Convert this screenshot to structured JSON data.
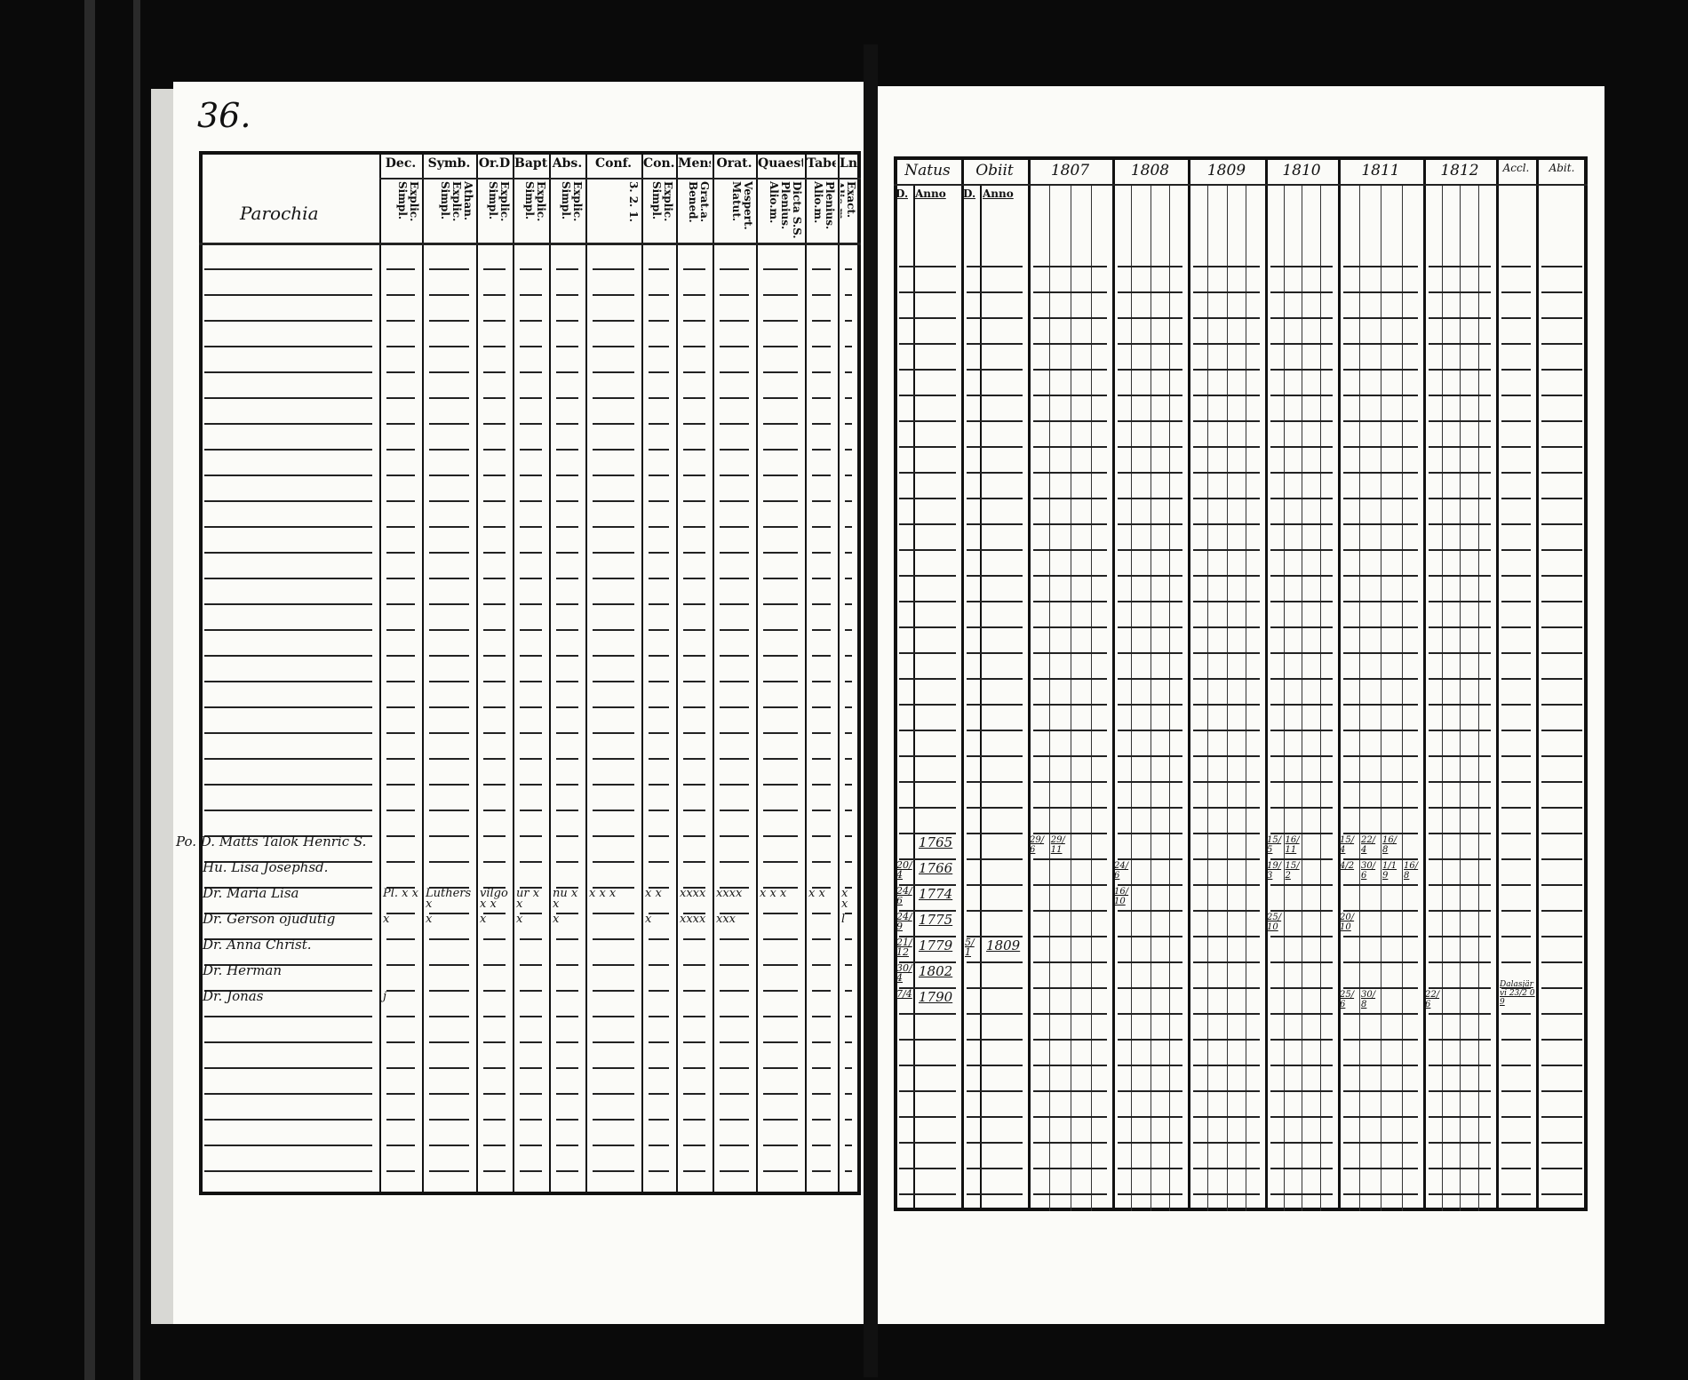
{
  "left_page": {
    "page_number": "36.",
    "name_column_header": "Parochia",
    "columns": [
      {
        "header": "Dec.",
        "sub": "Explic. Simpl."
      },
      {
        "header": "Symb.",
        "sub": "Athan. Explic. Simpl."
      },
      {
        "header": "Or.D",
        "sub": "Explic. Simpl."
      },
      {
        "header": "Bapt.",
        "sub": "Explic. Simpl."
      },
      {
        "header": "Abs.",
        "sub": "Explic. Simpl."
      },
      {
        "header": "Conf.",
        "sub": "3. 2. 1."
      },
      {
        "header": "Con.D",
        "sub": "Explic. Simpl."
      },
      {
        "header": "Mens.",
        "sub": "Grat.a. Bened."
      },
      {
        "header": "Orat.",
        "sub": "Vespert. Matut."
      },
      {
        "header": "Quaest.",
        "sub": "Dicta S.S. Plenius. Alio.m."
      },
      {
        "header": "Tabe.",
        "sub": "Plenius. Alio.m."
      },
      {
        "header": "Ln.",
        "sub": "Exact. Alio.m."
      }
    ],
    "entries": [
      {
        "name": "Po. D. Matts Talok Henric S.",
        "marks": []
      },
      {
        "name": "Hu. Lisa Josephsd.",
        "marks": []
      },
      {
        "name": "Dr. Maria Lisa",
        "marks": [
          "Pl. x x",
          "Luthers x",
          "vilgo x x",
          "ur x x",
          "nu x x",
          "x x x",
          "x x",
          "xxxx",
          "xxxx",
          "x x x",
          "x x",
          "x x"
        ]
      },
      {
        "name": "Dr. Gerson   ojudutig",
        "marks": [
          "x",
          "x",
          "x",
          "x",
          "x",
          "",
          "x",
          "xxxx",
          "xxx",
          "",
          "",
          "l"
        ]
      },
      {
        "name": "Dr. Anna Christ.",
        "marks": []
      },
      {
        "name": "Dr. Herman",
        "marks": []
      },
      {
        "name": "Dr. Jonas",
        "marks": [
          "j"
        ]
      }
    ]
  },
  "right_page": {
    "headers": [
      {
        "header": "Natus",
        "subs": [
          "D.",
          "Anno"
        ]
      },
      {
        "header": "Obiit",
        "subs": [
          "D.",
          "Anno"
        ]
      },
      {
        "header": "1807",
        "subs": []
      },
      {
        "header": "1808",
        "subs": []
      },
      {
        "header": "1809",
        "subs": []
      },
      {
        "header": "1810",
        "subs": []
      },
      {
        "header": "1811",
        "subs": []
      },
      {
        "header": "1812",
        "subs": []
      },
      {
        "header": "Accl.",
        "subs": []
      },
      {
        "header": "Abit.",
        "subs": []
      }
    ],
    "entries": [
      {
        "natus_d": "",
        "natus_anno": "1765",
        "obiit_d": "",
        "obiit_anno": "",
        "y1807": [
          "29/6",
          "29/11"
        ],
        "y1808": [],
        "y1810": [
          "15/5",
          "16/11"
        ],
        "y1811": [
          "15/4",
          "22/4",
          "16/8"
        ],
        "y1812": [],
        "accl": ""
      },
      {
        "natus_d": "20/4",
        "natus_anno": "1766",
        "obiit_d": "",
        "obiit_anno": "",
        "y1807": [],
        "y1808": [
          "24/6"
        ],
        "y1810": [
          "19/3",
          "15/2"
        ],
        "y1811": [
          "4/2",
          "30/6",
          "1/19",
          "16/8"
        ],
        "y1812": [],
        "accl": ""
      },
      {
        "natus_d": "24/6",
        "natus_anno": "1774",
        "obiit_d": "",
        "obiit_anno": "",
        "y1807": [],
        "y1808": [
          "16/10"
        ],
        "y1810": [],
        "y1811": [],
        "y1812": [],
        "accl": ""
      },
      {
        "natus_d": "24/9",
        "natus_anno": "1775",
        "obiit_d": "",
        "obiit_anno": "",
        "y1807": [],
        "y1808": [],
        "y1810": [
          "25/10"
        ],
        "y1811": [
          "20/10"
        ],
        "y1812": [],
        "accl": ""
      },
      {
        "natus_d": "21/12",
        "natus_anno": "1779",
        "obiit_d": "5/1",
        "obiit_anno": "1809",
        "y1807": [],
        "y1808": [],
        "y1810": [],
        "y1811": [],
        "y1812": [],
        "accl": ""
      },
      {
        "natus_d": "30/4",
        "natus_anno": "1802",
        "obiit_d": "",
        "obiit_anno": "",
        "y1807": [],
        "y1808": [],
        "y1810": [],
        "y1811": [],
        "y1812": [],
        "accl": ""
      },
      {
        "natus_d": "7/4",
        "natus_anno": "1790",
        "obiit_d": "",
        "obiit_anno": "",
        "y1807": [],
        "y1808": [],
        "y1810": [],
        "y1811": [
          "25/6",
          "30/8"
        ],
        "y1812": [
          "22/6"
        ],
        "accl": "Dalasjärvi 23/2 09"
      }
    ]
  },
  "colors": {
    "background": "#0a0a0a",
    "paper": "#fbfbf8",
    "ink": "#111111"
  }
}
